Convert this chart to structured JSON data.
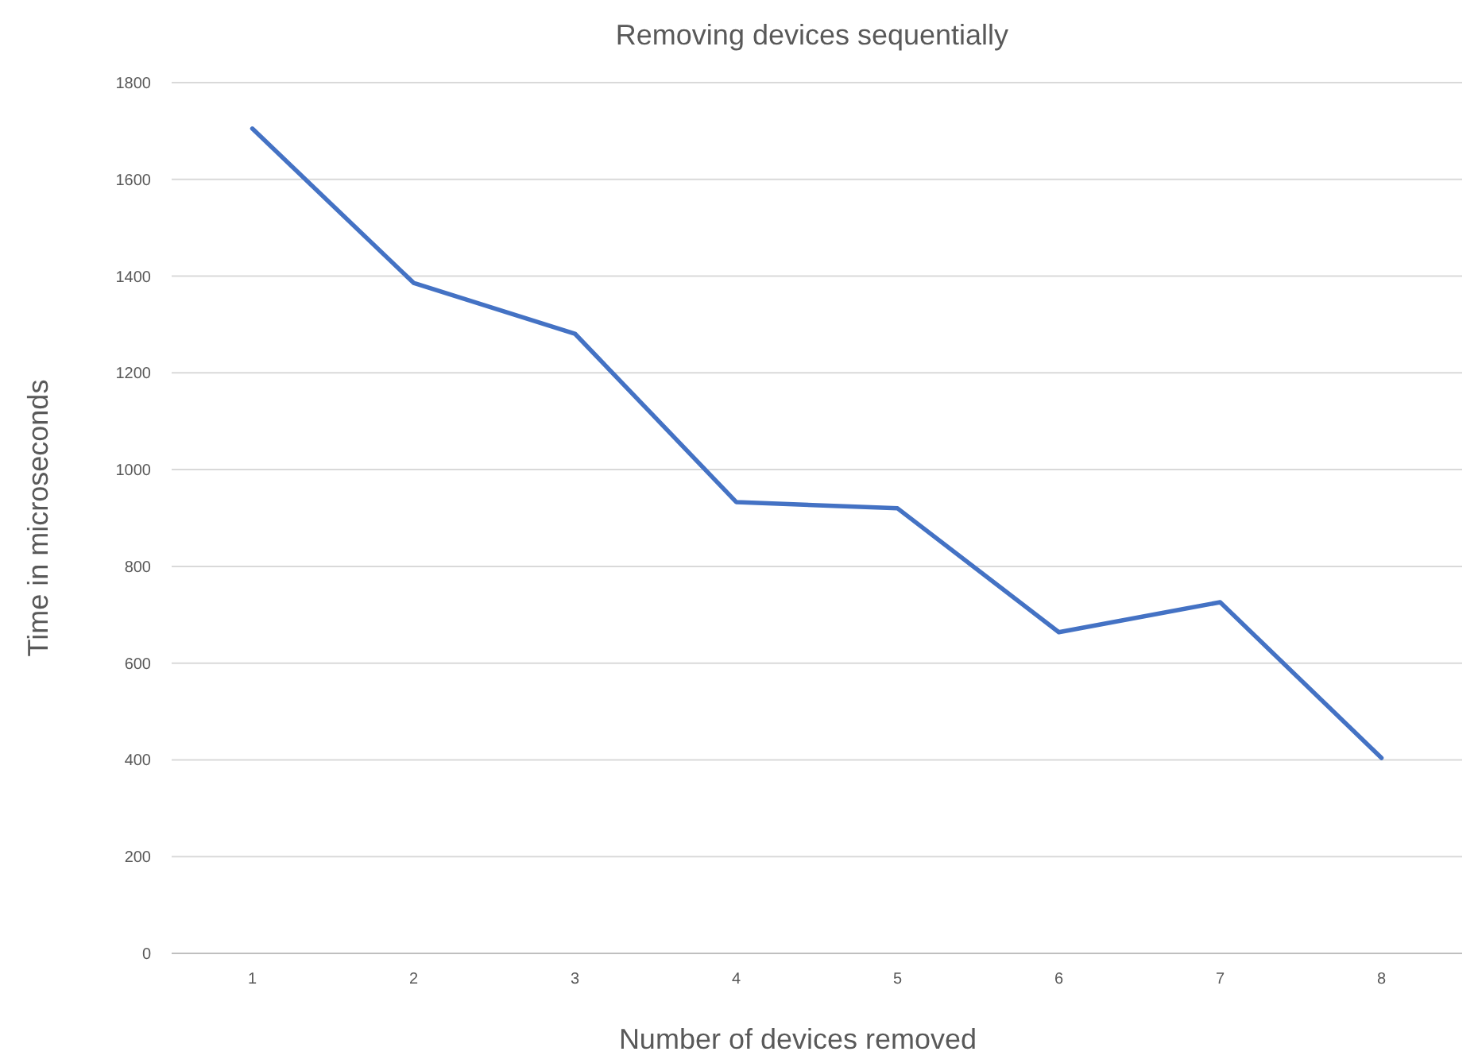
{
  "chart_data": {
    "type": "line",
    "title": "Removing devices sequentially",
    "xlabel": "Number of devices removed",
    "ylabel": "Time in microseconds",
    "categories": [
      "1",
      "2",
      "3",
      "4",
      "5",
      "6",
      "7",
      "8"
    ],
    "series": [
      {
        "color": "#4472c4",
        "values": [
          1705,
          1386,
          1281,
          933,
          920,
          664,
          726,
          404
        ]
      }
    ],
    "ylim": [
      0,
      1800
    ],
    "yticks": [
      0,
      200,
      400,
      600,
      800,
      1000,
      1200,
      1400,
      1600,
      1800
    ],
    "grid": "y",
    "marker": "none",
    "line_style": "solid"
  }
}
